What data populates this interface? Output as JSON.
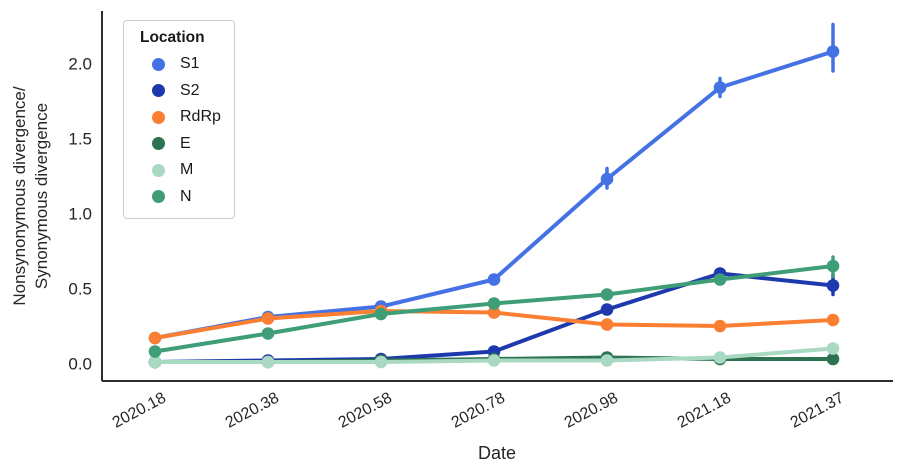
{
  "figure": {
    "background": "#ffffff",
    "text_color": "#262626",
    "spine_color": "#2e2e2e"
  },
  "chart_data": {
    "type": "line",
    "title": "",
    "xlabel": "Date",
    "ylabel_line1": "Nonsynonymous divergence/",
    "ylabel_line2": "Synonymous divergence",
    "categories": [
      "2020.18",
      "2020.38",
      "2020.58",
      "2020.78",
      "2020.98",
      "2021.18",
      "2021.37"
    ],
    "ytick_labels": [
      "0.0",
      "0.5",
      "1.0",
      "1.5",
      "2.0"
    ],
    "ytick_values": [
      0,
      0.5,
      1.0,
      1.5,
      2.0
    ],
    "ylim": [
      -0.12,
      2.35
    ],
    "grid": false,
    "legend": {
      "title": "Location",
      "position": "upper left",
      "entries": [
        "S1",
        "S2",
        "RdRp",
        "E",
        "M",
        "N"
      ]
    },
    "series": [
      {
        "name": "S1",
        "color": "#4472e4",
        "values": [
          0.17,
          0.31,
          0.38,
          0.56,
          1.23,
          1.84,
          2.08
        ],
        "errors": [
          null,
          null,
          null,
          null,
          [
            1.17,
            1.3
          ],
          [
            1.78,
            1.9
          ],
          [
            1.95,
            2.26
          ]
        ]
      },
      {
        "name": "S2",
        "color": "#1e39ae",
        "values": [
          0.01,
          0.02,
          0.03,
          0.08,
          0.36,
          0.6,
          0.52
        ],
        "errors": [
          null,
          null,
          null,
          null,
          null,
          [
            0.57,
            0.63
          ],
          [
            0.46,
            0.59
          ]
        ]
      },
      {
        "name": "RdRp",
        "color": "#fa7f33",
        "values": [
          0.17,
          0.3,
          0.35,
          0.34,
          0.26,
          0.25,
          0.29
        ],
        "errors": [
          null,
          null,
          null,
          null,
          null,
          null,
          null
        ]
      },
      {
        "name": "E",
        "color": "#2e7351",
        "values": [
          0.01,
          0.01,
          0.02,
          0.03,
          0.04,
          0.03,
          0.03
        ],
        "errors": [
          null,
          null,
          null,
          null,
          null,
          null,
          null
        ]
      },
      {
        "name": "M",
        "color": "#a9d9c3",
        "values": [
          0.01,
          0.01,
          0.01,
          0.02,
          0.02,
          0.04,
          0.1
        ],
        "errors": [
          null,
          null,
          null,
          null,
          null,
          null,
          null
        ]
      },
      {
        "name": "N",
        "color": "#3f9e77",
        "values": [
          0.08,
          0.2,
          0.33,
          0.4,
          0.46,
          0.56,
          0.65
        ],
        "errors": [
          null,
          null,
          null,
          [
            0.38,
            0.42
          ],
          [
            0.43,
            0.48
          ],
          [
            0.54,
            0.58
          ],
          [
            0.58,
            0.71
          ]
        ]
      }
    ]
  }
}
